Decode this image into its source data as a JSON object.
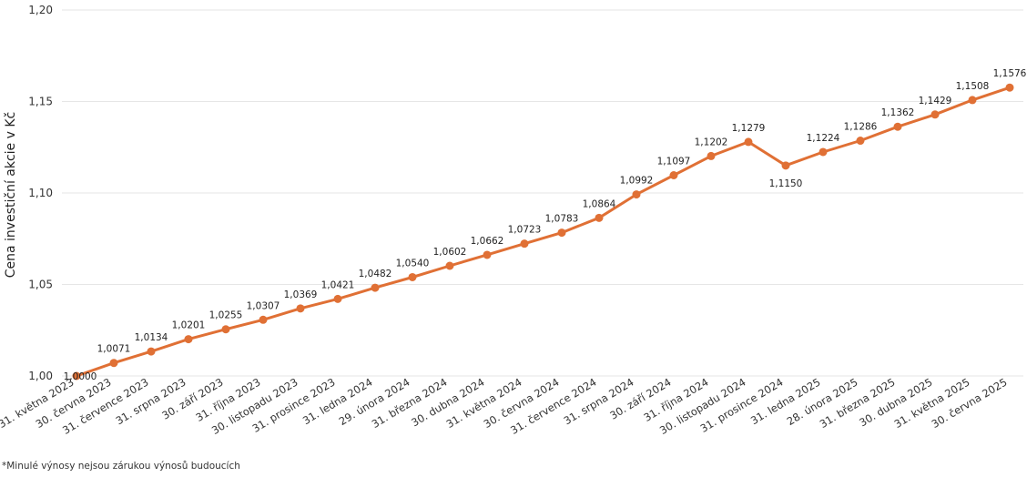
{
  "chart_data": {
    "type": "line",
    "ylabel": "Cena investiční akcie v Kč",
    "ylim": [
      1.0,
      1.2
    ],
    "yticks": [
      "1,00",
      "1,05",
      "1,10",
      "1,15",
      "1,20"
    ],
    "grid": true,
    "categories": [
      "31. května 2023",
      "30. června 2023",
      "31. července 2023",
      "31. srpna 2023",
      "30. září 2023",
      "31. října 2023",
      "30. listopadu 2023",
      "31. prosince 2023",
      "31. ledna 2024",
      "29. února 2024",
      "31. března 2024",
      "30. dubna 2024",
      "31. května 2024",
      "30. června 2024",
      "31. července 2024",
      "31. srpna 2024",
      "30. září 2024",
      "31. října 2024",
      "30. listopadu 2024",
      "31. prosince 2024",
      "31. ledna 2025",
      "28. února 2025",
      "31. března 2025",
      "30. dubna 2025",
      "31. května 2025",
      "30. června 2025"
    ],
    "series": [
      {
        "color": "#e07035",
        "values": [
          1.0,
          1.0071,
          1.0134,
          1.0201,
          1.0255,
          1.0307,
          1.0369,
          1.0421,
          1.0482,
          1.054,
          1.0602,
          1.0662,
          1.0723,
          1.0783,
          1.0864,
          1.0992,
          1.1097,
          1.1202,
          1.1279,
          1.115,
          1.1224,
          1.1286,
          1.1362,
          1.1429,
          1.1508,
          1.1576
        ],
        "labels": [
          "1,0000",
          "1,0071",
          "1,0134",
          "1,0201",
          "1,0255",
          "1,0307",
          "1,0369",
          "1,0421",
          "1,0482",
          "1,0540",
          "1,0602",
          "1,0662",
          "1,0723",
          "1,0783",
          "1,0864",
          "1,0992",
          "1,1097",
          "1,1202",
          "1,1279",
          "1,1150",
          "1,1224",
          "1,1286",
          "1,1362",
          "1,1429",
          "1,1508",
          "1,1576"
        ]
      }
    ]
  },
  "footnote": "*Minulé výnosy nejsou zárukou výnosů budoucích"
}
